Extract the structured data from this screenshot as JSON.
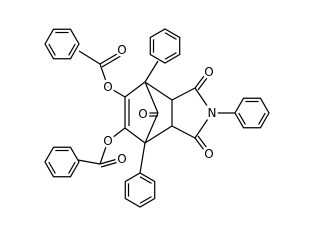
{
  "atoms": [
    "O",
    "O",
    "O",
    "O",
    "O",
    "O",
    "N",
    "O"
  ]
}
